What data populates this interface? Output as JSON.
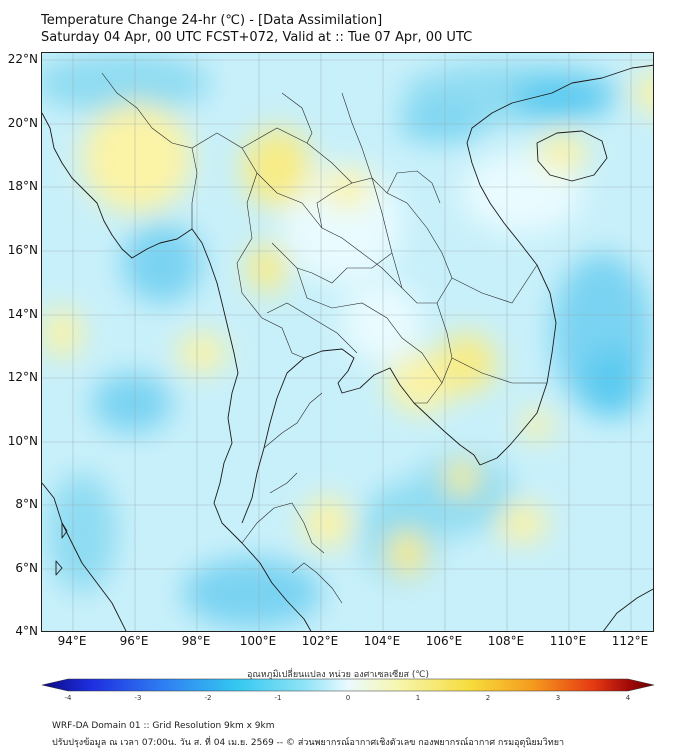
{
  "header": {
    "title_line1": "Temperature Change 24-hr (℃) - [Data Assimilation]",
    "title_line2": "Saturday 04 Apr, 00 UTC FCST+072, Valid at :: Tue 07 Apr, 00 UTC"
  },
  "map": {
    "lat_labels": [
      "22°N",
      "20°N",
      "18°N",
      "16°N",
      "14°N",
      "12°N",
      "10°N",
      "8°N",
      "6°N",
      "4°N"
    ],
    "lon_labels": [
      "94°E",
      "96°E",
      "98°E",
      "100°E",
      "102°E",
      "104°E",
      "106°E",
      "108°E",
      "110°E",
      "112°E"
    ],
    "extent": {
      "lon_min": 93.0,
      "lon_max": 112.8,
      "lat_min": 4.0,
      "lat_max": 22.2
    },
    "field_colors": {
      "cool": "#9fe3f5",
      "cool_strong": "#62d0f2",
      "neutral": "#eafaff",
      "warm": "#fbf6b4",
      "warm_strong": "#f6ec7e"
    }
  },
  "colorbar": {
    "title": "อุณหภูมิเปลี่ยนแปลง หน่วย องศาเซลเซียส (℃)",
    "ticks": [
      "-4",
      "-3",
      "-2",
      "-1",
      "0",
      "1",
      "2",
      "3",
      "4"
    ],
    "range": [
      -4,
      4
    ],
    "colors": [
      "#0a0a80",
      "#1e2ee0",
      "#2f7ff2",
      "#35c8f0",
      "#8fe4f6",
      "#eafaff",
      "#f6f6b0",
      "#f6dc3c",
      "#f59c1e",
      "#e63a12",
      "#a00808",
      "#660000"
    ]
  },
  "footer": {
    "line1": "WRF-DA Domain 01 :: Grid Resolution 9km x 9km",
    "line2": "ปรับปรุงข้อมูล ณ เวลา 07:00น. วัน ส. ที่ 04 เม.ย. 2569 -- © ส่วนพยากรณ์อากาศเชิงตัวเลข กองพยากรณ์อากาศ กรมอุตุนิยมวิทยา"
  }
}
